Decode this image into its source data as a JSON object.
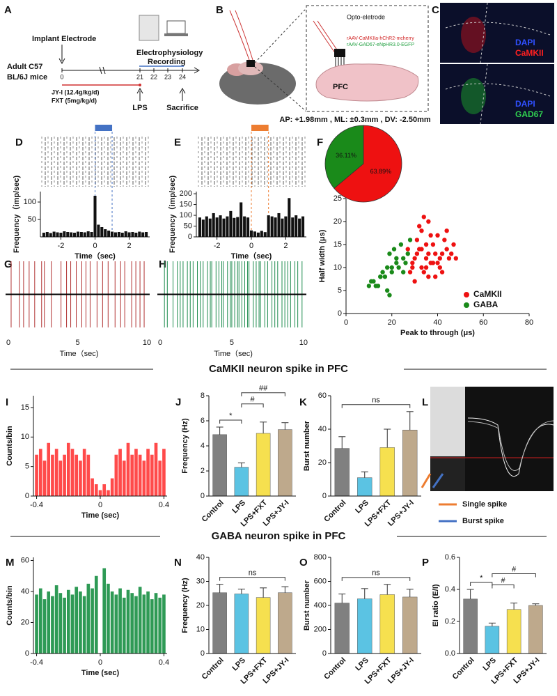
{
  "panel_labels": [
    "A",
    "B",
    "C",
    "D",
    "E",
    "F",
    "G",
    "H",
    "I",
    "J",
    "K",
    "L",
    "M",
    "N",
    "O",
    "P"
  ],
  "timeline": {
    "implant": "Implant Electrode",
    "mice": [
      "Adult C57",
      "BL/6J mice"
    ],
    "recording": [
      "Electrophysiology",
      "Recording"
    ],
    "days": [
      "0",
      "21",
      "22",
      "23",
      "24"
    ],
    "drugs": [
      "JY-I (12.4g/kg/d)",
      "FXT (5mg/kg/d)"
    ],
    "lps": "LPS",
    "sacrifice": "Sacrifice"
  },
  "schematic": {
    "electrode": "Opto-eletrode",
    "virus": [
      "rAAV-CaMKIIa-hChR2-mcherry",
      "rAAV-GAD67-eNpHR3.0-EGFP"
    ],
    "region": "PFC"
  },
  "histology": {
    "top": [
      "DAPI",
      "CaMKII"
    ],
    "bottom": [
      "DAPI",
      "GAD67"
    ]
  },
  "coordinates": "AP: +1.98mm , ML: ±0.3mm , DV: -2.50mm",
  "section_titles": [
    "CaMKII neuron spike in PFC",
    "GABA neuron spike in PFC"
  ],
  "waveform_legend": [
    "Single spike",
    "Burst  spike"
  ],
  "chart_data": [
    {
      "type": "bar",
      "x": [
        -3,
        -2.8,
        -2.6,
        -2.4,
        -2.2,
        -2,
        -1.8,
        -1.6,
        -1.4,
        -1.2,
        -1,
        -0.8,
        -0.6,
        -0.4,
        -0.2,
        0,
        0.2,
        0.4,
        0.6,
        0.8,
        1,
        1.2,
        1.4,
        1.6,
        1.8,
        2,
        2.2,
        2.4,
        2.6,
        2.8,
        3
      ],
      "values": [
        12,
        14,
        11,
        15,
        13,
        12,
        16,
        14,
        13,
        12,
        15,
        14,
        13,
        16,
        14,
        118,
        35,
        28,
        22,
        18,
        15,
        13,
        14,
        12,
        16,
        13,
        14,
        12,
        15,
        13,
        14
      ],
      "color": "#111111",
      "xlim": [
        -3.2,
        3.2
      ],
      "xticks": [
        -2,
        0,
        2
      ],
      "ylim": [
        0,
        130
      ],
      "yticks": [
        50,
        100
      ],
      "xlabel": "Time（sec)",
      "ylabel": "Frequency（imp/sec)",
      "stimulus": {
        "range": [
          0,
          1
        ],
        "color": "#4472c4"
      }
    },
    {
      "type": "bar",
      "x": [
        -3,
        -2.8,
        -2.6,
        -2.4,
        -2.2,
        -2,
        -1.8,
        -1.6,
        -1.4,
        -1.2,
        -1,
        -0.8,
        -0.6,
        -0.4,
        -0.2,
        0,
        0.2,
        0.4,
        0.6,
        0.8,
        1,
        1.2,
        1.4,
        1.6,
        1.8,
        2,
        2.2,
        2.4,
        2.6,
        2.8,
        3
      ],
      "values": [
        90,
        80,
        95,
        85,
        110,
        90,
        100,
        85,
        95,
        120,
        88,
        92,
        160,
        95,
        90,
        30,
        25,
        20,
        28,
        22,
        100,
        95,
        90,
        110,
        85,
        95,
        180,
        90,
        100,
        85,
        95
      ],
      "color": "#111111",
      "xlim": [
        -3.2,
        3.2
      ],
      "xticks": [
        -2,
        0,
        2
      ],
      "ylim": [
        0,
        210
      ],
      "yticks": [
        0,
        50,
        100,
        150,
        200
      ],
      "xlabel": "Time（sec)",
      "ylabel": "Frequency（imp/sec)",
      "stimulus": {
        "range": [
          0,
          1
        ],
        "color": "#ed7d31"
      }
    },
    {
      "type": "rug",
      "x": [
        0.2,
        0.8,
        1.1,
        1.5,
        1.9,
        2.4,
        2.6,
        3.1,
        3.8,
        4.2,
        4.5,
        4.9,
        5.3,
        5.6,
        5.9,
        6.4,
        6.8,
        7.2,
        7.7,
        8.1,
        8.4,
        8.9,
        9.2,
        9.5,
        9.8
      ],
      "color": "#b03030",
      "xlim": [
        0,
        10.2
      ],
      "xticks": [
        0,
        5,
        10
      ],
      "xlabel": "Time（sec)"
    },
    {
      "type": "rug",
      "x": [
        0.3,
        0.5,
        0.9,
        1.2,
        1.4,
        1.6,
        1.9,
        2.1,
        2.3,
        2.6,
        2.8,
        3.0,
        3.3,
        3.5,
        3.6,
        3.9,
        4.1,
        4.3,
        4.4,
        4.7,
        4.9,
        5.0,
        5.2,
        5.4,
        5.5,
        5.7,
        5.9,
        6.1,
        6.2,
        6.5,
        6.7,
        6.9,
        7.0,
        7.3,
        7.5,
        7.8,
        8.0,
        8.2,
        8.5,
        8.7,
        8.9,
        9.1,
        9.4,
        9.6,
        9.9
      ],
      "color": "#1e8c4e",
      "xlim": [
        0,
        10.2
      ],
      "xticks": [
        0,
        5,
        10
      ],
      "xlabel": "Time（sec)"
    },
    {
      "type": "pie",
      "values": [
        63.89,
        36.11
      ],
      "value_labels": [
        "63.89%",
        "36.11%"
      ],
      "colors": [
        "#ee1111",
        "#1a8a1a"
      ]
    },
    {
      "type": "scatter",
      "xlim": [
        0,
        80
      ],
      "xticks": [
        0,
        20,
        40,
        60,
        80
      ],
      "ylim": [
        0,
        25
      ],
      "yticks": [
        0,
        5,
        10,
        15,
        20,
        25
      ],
      "xlabel": "Peak to through (μs)",
      "ylabel": "Half width (μs)",
      "legend": "lower right",
      "series": [
        {
          "name": "CaMKII",
          "color": "#ee1111",
          "x": [
            30,
            32,
            35,
            28,
            38,
            40,
            42,
            33,
            36,
            31,
            45,
            47,
            29,
            34,
            37,
            39,
            41,
            44,
            32,
            35,
            38,
            30,
            43,
            46,
            36,
            33,
            48,
            27,
            40,
            35,
            31,
            42,
            37,
            34,
            39,
            44,
            29,
            36,
            41,
            33
          ],
          "values": [
            12,
            14,
            10,
            9,
            15,
            11,
            13,
            18,
            8,
            16,
            12,
            15,
            11,
            9,
            17,
            13,
            10,
            14,
            19,
            12,
            11,
            7,
            16,
            13,
            20,
            10,
            12,
            14,
            17,
            15,
            13,
            9,
            11,
            21,
            8,
            18,
            10,
            13,
            12,
            14
          ]
        },
        {
          "name": "GABA",
          "color": "#1a8a1a",
          "x": [
            12,
            15,
            18,
            20,
            14,
            22,
            25,
            17,
            19,
            11,
            23,
            16,
            21,
            26,
            13,
            24,
            18,
            28,
            20,
            15,
            27,
            10,
            22,
            19,
            25
          ],
          "values": [
            7,
            8,
            10,
            9,
            6,
            11,
            12,
            8,
            13,
            7,
            10,
            9,
            14,
            11,
            6,
            15,
            5,
            16,
            10,
            8,
            13,
            6,
            12,
            4,
            9
          ]
        }
      ]
    },
    {
      "type": "bar",
      "x": [
        -0.4,
        -0.375,
        -0.35,
        -0.325,
        -0.3,
        -0.275,
        -0.25,
        -0.225,
        -0.2,
        -0.175,
        -0.15,
        -0.125,
        -0.1,
        -0.075,
        -0.05,
        -0.025,
        0,
        0.025,
        0.05,
        0.075,
        0.1,
        0.125,
        0.15,
        0.175,
        0.2,
        0.225,
        0.25,
        0.275,
        0.3,
        0.325,
        0.35,
        0.375,
        0.4
      ],
      "values": [
        7,
        8,
        6,
        9,
        7,
        8,
        6,
        7,
        9,
        8,
        7,
        6,
        8,
        7,
        3,
        2,
        1,
        2,
        1,
        3,
        7,
        8,
        6,
        9,
        7,
        8,
        7,
        6,
        8,
        7,
        9,
        6,
        8
      ],
      "color": "#ff4a4a",
      "xlim": [
        -0.42,
        0.42
      ],
      "xticks": [
        -0.4,
        0,
        0.4
      ],
      "ylim": [
        0,
        17
      ],
      "yticks": [
        0,
        5,
        10,
        15
      ],
      "xlabel": "Time (sec)",
      "ylabel": "Counts/bin"
    },
    {
      "type": "bar",
      "categories": [
        "Control",
        "LPS",
        "LPS+FXT",
        "LPS+JY-I"
      ],
      "values": [
        4.9,
        2.3,
        5.0,
        5.3
      ],
      "errors": [
        0.6,
        0.35,
        0.9,
        0.55
      ],
      "colors": [
        "#808080",
        "#5bc3e3",
        "#f6e04f",
        "#bea98c"
      ],
      "ylim": [
        0,
        8
      ],
      "yticks": [
        0,
        2,
        4,
        6,
        8
      ],
      "ylabel": "Frequency (Hz)",
      "brackets": [
        {
          "between": [
            "Control",
            "LPS"
          ],
          "label": "*"
        },
        {
          "between": [
            "LPS",
            "LPS+FXT"
          ],
          "label": "#"
        },
        {
          "between": [
            "LPS",
            "LPS+JY-I"
          ],
          "label": "##"
        }
      ]
    },
    {
      "type": "bar",
      "categories": [
        "Control",
        "LPS",
        "LPS+FXT",
        "LPS+JY-I"
      ],
      "values": [
        28.5,
        11,
        29,
        39.5
      ],
      "errors": [
        7,
        3.5,
        11,
        11
      ],
      "colors": [
        "#808080",
        "#5bc3e3",
        "#f6e04f",
        "#bea98c"
      ],
      "ylim": [
        0,
        60
      ],
      "yticks": [
        0,
        20,
        40,
        60
      ],
      "ylabel": "Burst number",
      "brackets": [
        {
          "between": [
            "Control",
            "LPS+JY-I"
          ],
          "label": "ns"
        }
      ]
    },
    {
      "type": "bar",
      "x": [
        -0.4,
        -0.375,
        -0.35,
        -0.325,
        -0.3,
        -0.275,
        -0.25,
        -0.225,
        -0.2,
        -0.175,
        -0.15,
        -0.125,
        -0.1,
        -0.075,
        -0.05,
        -0.025,
        0,
        0.025,
        0.05,
        0.075,
        0.1,
        0.125,
        0.15,
        0.175,
        0.2,
        0.225,
        0.25,
        0.275,
        0.3,
        0.325,
        0.35,
        0.375,
        0.4
      ],
      "values": [
        38,
        42,
        35,
        40,
        37,
        44,
        39,
        36,
        41,
        38,
        43,
        40,
        37,
        45,
        42,
        50,
        0,
        55,
        45,
        40,
        38,
        42,
        36,
        41,
        39,
        37,
        43,
        38,
        40,
        35,
        39,
        36,
        38
      ],
      "color": "#2e9a55",
      "xlim": [
        -0.42,
        0.42
      ],
      "xticks": [
        -0.4,
        0,
        0.4
      ],
      "ylim": [
        0,
        62
      ],
      "yticks": [
        0,
        20,
        40,
        60
      ],
      "xlabel": "Time (sec)",
      "ylabel": "Counts/bin"
    },
    {
      "type": "bar",
      "categories": [
        "Control",
        "LPS",
        "LPS+FXT",
        "LPS+JY-I"
      ],
      "values": [
        25.3,
        24.8,
        23.3,
        25.3
      ],
      "errors": [
        3.5,
        2,
        4,
        2.5
      ],
      "colors": [
        "#808080",
        "#5bc3e3",
        "#f6e04f",
        "#bea98c"
      ],
      "ylim": [
        0,
        40
      ],
      "yticks": [
        0,
        10,
        20,
        30,
        40
      ],
      "ylabel": "Frequency (Hz)",
      "brackets": [
        {
          "between": [
            "Control",
            "LPS+JY-I"
          ],
          "label": "ns"
        }
      ]
    },
    {
      "type": "bar",
      "categories": [
        "Control",
        "LPS",
        "LPS+FXT",
        "LPS+JY-I"
      ],
      "values": [
        420,
        455,
        490,
        470
      ],
      "errors": [
        75,
        85,
        85,
        65
      ],
      "colors": [
        "#808080",
        "#5bc3e3",
        "#f6e04f",
        "#bea98c"
      ],
      "ylim": [
        0,
        800
      ],
      "yticks": [
        0,
        200,
        400,
        600,
        800
      ],
      "ylabel": "Burst number",
      "brackets": [
        {
          "between": [
            "Control",
            "LPS+JY-I"
          ],
          "label": "ns"
        }
      ]
    },
    {
      "type": "bar",
      "categories": [
        "Control",
        "LPS",
        "LPS+FXT",
        "LPS+JY-I"
      ],
      "values": [
        0.34,
        0.17,
        0.275,
        0.3
      ],
      "errors": [
        0.06,
        0.02,
        0.04,
        0.01
      ],
      "colors": [
        "#808080",
        "#5bc3e3",
        "#f6e04f",
        "#bea98c"
      ],
      "ylim": [
        0,
        0.6
      ],
      "yticks": [
        {
          "value": 0,
          "label": "0.0"
        },
        0.2,
        0.4,
        0.6
      ],
      "ylabel": "EI ratio (E/I)",
      "brackets": [
        {
          "between": [
            "Control",
            "LPS"
          ],
          "label": "*"
        },
        {
          "between": [
            "LPS",
            "LPS+FXT"
          ],
          "label": "#"
        },
        {
          "between": [
            "LPS",
            "LPS+JY-I"
          ],
          "label": "#"
        }
      ]
    }
  ]
}
